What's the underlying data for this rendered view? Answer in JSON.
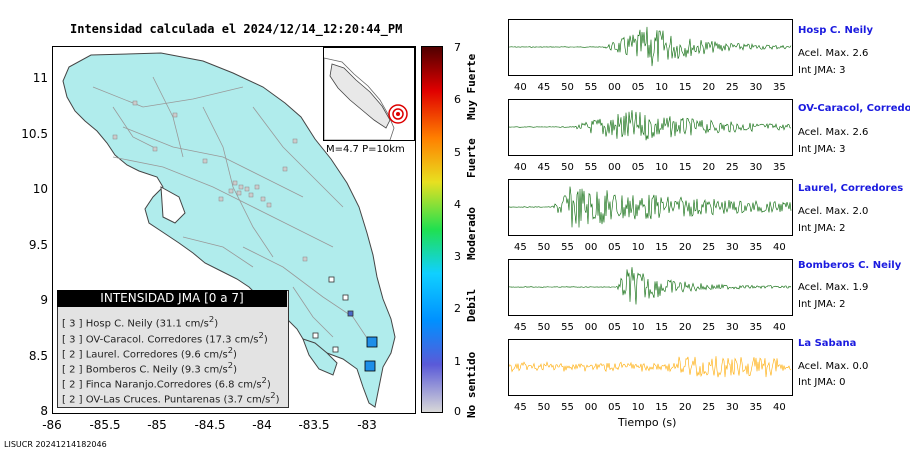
{
  "title": "Intensidad calculada el 2024/12/14_12:20:44_PM",
  "map": {
    "lat_ticks": [
      "11",
      "10.5",
      "10",
      "9.5",
      "9",
      "8.5",
      "8"
    ],
    "lon_ticks": [
      "-86",
      "-85.5",
      "-85",
      "-84.5",
      "-84",
      "-83.5",
      "-83"
    ],
    "event_info": "M=4.7 P=10km"
  },
  "legend": {
    "header": "INTENSIDAD JMA [0 a 7]",
    "rows": [
      {
        "jma": "[ 3 ]",
        "name": "Hosp C. Neily (31.1 cm/s",
        "sup": "2",
        "close": ")"
      },
      {
        "jma": "[ 3 ]",
        "name": "OV-Caracol. Corredores (17.3 cm/s",
        "sup": "2",
        "close": ")"
      },
      {
        "jma": "[ 2 ]",
        "name": "Laurel. Corredores (9.6 cm/s",
        "sup": "2",
        "close": ")"
      },
      {
        "jma": "[ 2 ]",
        "name": "Bomberos C. Neily (9.3 cm/s",
        "sup": "2",
        "close": ")"
      },
      {
        "jma": "[ 2 ]",
        "name": "Finca Naranjo.Corredores (6.8 cm/s",
        "sup": "2",
        "close": ")"
      },
      {
        "jma": "[ 2 ]",
        "name": "OV-Las Cruces. Puntarenas (3.7 cm/s",
        "sup": "2",
        "close": ")"
      }
    ]
  },
  "colorbar": {
    "ticks": [
      "7",
      "6",
      "5",
      "4",
      "3",
      "2",
      "1",
      "0"
    ],
    "labels": [
      "Muy Fuerte",
      "Fuerte",
      "Moderado",
      "Debil",
      "No sentido"
    ],
    "colors": [
      "#d8d8d8",
      "#5a5ad8",
      "#0090ff",
      "#10d0ff",
      "#20e050",
      "#e8e020",
      "#ff8000",
      "#e00000",
      "#500000"
    ]
  },
  "stations": [
    {
      "name": "Hosp C. Neily",
      "acel": "Acel. Max. 2.6",
      "jma": "Int JMA: 3",
      "ticks": [
        "40",
        "45",
        "50",
        "55",
        "00",
        "05",
        "10",
        "15",
        "20",
        "25",
        "30",
        "35"
      ],
      "color": "#006400"
    },
    {
      "name": "OV-Caracol, Corredore",
      "acel": "Acel. Max. 2.6",
      "jma": "Int JMA: 3",
      "ticks": [
        "40",
        "45",
        "50",
        "55",
        "00",
        "05",
        "10",
        "15",
        "20",
        "25",
        "30",
        "35"
      ],
      "color": "#006400"
    },
    {
      "name": "Laurel, Corredores",
      "acel": "Acel. Max. 2.0",
      "jma": "Int JMA: 2",
      "ticks": [
        "45",
        "50",
        "55",
        "00",
        "05",
        "10",
        "15",
        "20",
        "25",
        "30",
        "35",
        "40"
      ],
      "color": "#006400"
    },
    {
      "name": "Bomberos C. Neily",
      "acel": "Acel. Max. 1.9",
      "jma": "Int JMA: 2",
      "ticks": [
        "45",
        "50",
        "55",
        "00",
        "05",
        "10",
        "15",
        "20",
        "25",
        "30",
        "35",
        "40"
      ],
      "color": "#006400"
    },
    {
      "name": "La Sabana",
      "acel": "Acel. Max. 0.0",
      "jma": "Int JMA: 0",
      "ticks": [
        "45",
        "50",
        "55",
        "00",
        "05",
        "10",
        "15",
        "20",
        "25",
        "30",
        "35",
        "40"
      ],
      "color": "#ffaa00"
    }
  ],
  "xlabel": "Tiempo (s)",
  "footer": "LISUCR 20241214182046"
}
